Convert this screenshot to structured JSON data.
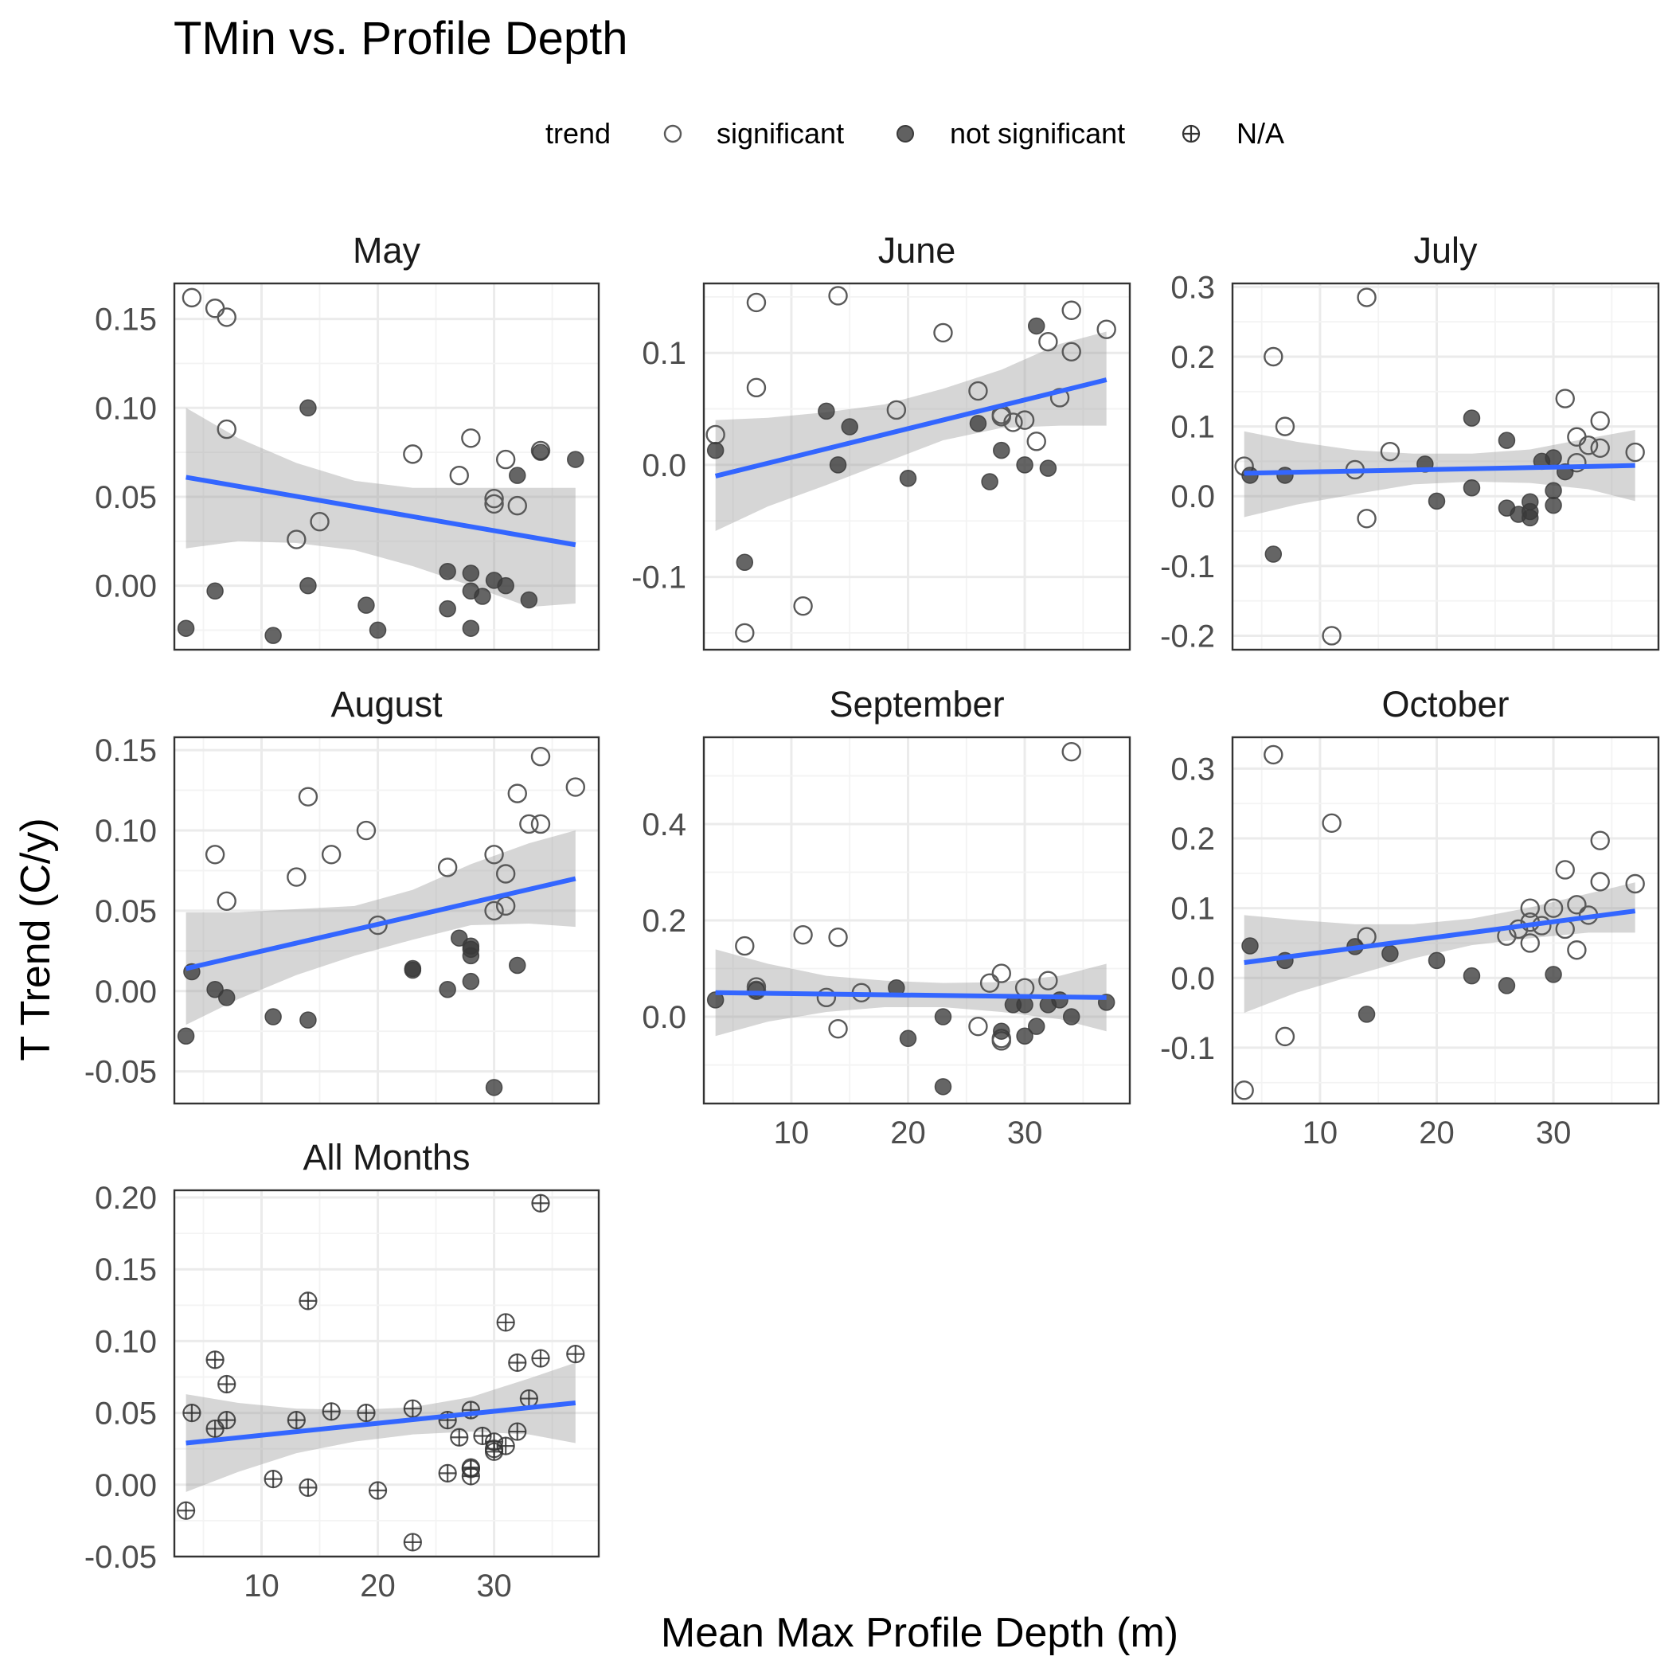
{
  "title": "TMin vs. Profile Depth",
  "legend": {
    "title": "trend",
    "items": [
      {
        "label": "significant",
        "shape": "open-circle"
      },
      {
        "label": "not significant",
        "shape": "filled-circle"
      },
      {
        "label": "N/A",
        "shape": "crossed-circle"
      }
    ]
  },
  "xlabel": "Mean Max Profile Depth (m)",
  "ylabel": "T Trend (C/y)",
  "colors": {
    "fit_line": "#3366FF",
    "ribbon": "#999999",
    "point_outline": "#595959",
    "point_fill": "#3a3a3a"
  },
  "chart_data": [
    {
      "type": "scatter",
      "panel": "May",
      "xlim": [
        2.5,
        39
      ],
      "ylim": [
        -0.036,
        0.17
      ],
      "x_ticks": [],
      "y_ticks": [
        "0.00",
        "0.05",
        "0.10",
        "0.15"
      ],
      "fit": {
        "x": [
          3.5,
          37
        ],
        "y": [
          0.061,
          0.023
        ]
      },
      "band": {
        "x": [
          3.5,
          8,
          13,
          18,
          23,
          28,
          33,
          37
        ],
        "upper": [
          0.1,
          0.083,
          0.069,
          0.059,
          0.055,
          0.055,
          0.055,
          0.055
        ],
        "lower": [
          0.021,
          0.025,
          0.024,
          0.02,
          0.011,
          0.0,
          -0.012,
          -0.01
        ]
      },
      "series": [
        {
          "name": "significant",
          "x": [
            4,
            6,
            7,
            7,
            13,
            15,
            23,
            27,
            28,
            30,
            30,
            31,
            32,
            34
          ],
          "y": [
            0.162,
            0.156,
            0.151,
            0.088,
            0.026,
            0.036,
            0.074,
            0.062,
            0.083,
            0.046,
            0.049,
            0.071,
            0.045,
            0.076
          ]
        },
        {
          "name": "not significant",
          "x": [
            3.5,
            6,
            11,
            14,
            14,
            19,
            20,
            26,
            26,
            28,
            28,
            28,
            29,
            30,
            31,
            32,
            33,
            34,
            37
          ],
          "y": [
            -0.024,
            -0.003,
            -0.028,
            0.1,
            0.0,
            -0.011,
            -0.025,
            0.008,
            -0.013,
            0.007,
            -0.003,
            -0.024,
            -0.006,
            0.003,
            0.0,
            0.062,
            -0.008,
            0.075,
            0.071
          ]
        }
      ]
    },
    {
      "type": "scatter",
      "panel": "June",
      "xlim": [
        2.5,
        39
      ],
      "ylim": [
        -0.165,
        0.162
      ],
      "x_ticks": [],
      "y_ticks": [
        "-0.1",
        "0.0",
        "0.1"
      ],
      "fit": {
        "x": [
          3.5,
          37
        ],
        "y": [
          -0.01,
          0.076
        ]
      },
      "band": {
        "x": [
          3.5,
          8,
          13,
          18,
          23,
          28,
          33,
          37
        ],
        "upper": [
          0.04,
          0.042,
          0.047,
          0.054,
          0.068,
          0.085,
          0.108,
          0.119
        ],
        "lower": [
          -0.059,
          -0.037,
          -0.018,
          0.002,
          0.022,
          0.033,
          0.035,
          0.035
        ]
      },
      "series": [
        {
          "name": "significant",
          "x": [
            3.5,
            6,
            7,
            7,
            11,
            14,
            19,
            23,
            26,
            28,
            28,
            29,
            30,
            31,
            32,
            33,
            34,
            34,
            37
          ],
          "y": [
            0.027,
            -0.15,
            0.145,
            0.069,
            -0.126,
            0.151,
            0.049,
            0.118,
            0.066,
            0.043,
            0.045,
            0.038,
            0.04,
            0.021,
            0.11,
            0.06,
            0.101,
            0.138,
            0.121
          ]
        },
        {
          "name": "not significant",
          "x": [
            3.5,
            6,
            13,
            15,
            14,
            20,
            26,
            27,
            28,
            30,
            31,
            32
          ],
          "y": [
            0.013,
            -0.087,
            0.048,
            0.034,
            0.0,
            -0.012,
            0.037,
            -0.015,
            0.013,
            0.0,
            0.124,
            -0.003
          ]
        }
      ]
    },
    {
      "type": "scatter",
      "panel": "July",
      "xlim": [
        2.5,
        39
      ],
      "ylim": [
        -0.22,
        0.305
      ],
      "x_ticks": [],
      "y_ticks": [
        "-0.2",
        "-0.1",
        "0.0",
        "0.1",
        "0.2",
        "0.3"
      ],
      "fit": {
        "x": [
          3.5,
          37
        ],
        "y": [
          0.033,
          0.044
        ]
      },
      "band": {
        "x": [
          3.5,
          8,
          13,
          18,
          23,
          28,
          33,
          37
        ],
        "upper": [
          0.093,
          0.078,
          0.066,
          0.061,
          0.061,
          0.067,
          0.083,
          0.095
        ],
        "lower": [
          -0.03,
          -0.012,
          0.003,
          0.017,
          0.021,
          0.019,
          0.01,
          -0.007
        ]
      },
      "series": [
        {
          "name": "significant",
          "x": [
            3.5,
            6,
            7,
            11,
            13,
            14,
            14,
            16,
            31,
            32,
            32,
            33,
            34,
            34,
            37
          ],
          "y": [
            0.043,
            0.2,
            0.1,
            -0.2,
            0.038,
            -0.032,
            0.285,
            0.064,
            0.14,
            0.085,
            0.048,
            0.073,
            0.069,
            0.108,
            0.063
          ]
        },
        {
          "name": "not significant",
          "x": [
            4,
            6,
            7,
            19,
            20,
            23,
            23,
            26,
            26,
            27,
            28,
            28,
            28,
            29,
            30,
            30,
            30,
            31
          ],
          "y": [
            0.03,
            -0.083,
            0.03,
            0.046,
            -0.007,
            0.112,
            0.012,
            0.08,
            -0.017,
            -0.026,
            -0.008,
            -0.022,
            -0.031,
            0.05,
            0.008,
            0.055,
            -0.013,
            0.035
          ]
        }
      ]
    },
    {
      "type": "scatter",
      "panel": "August",
      "xlim": [
        2.5,
        39
      ],
      "ylim": [
        -0.07,
        0.158
      ],
      "x_ticks": [],
      "y_ticks": [
        "-0.05",
        "0.00",
        "0.05",
        "0.10",
        "0.15"
      ],
      "fit": {
        "x": [
          3.5,
          37
        ],
        "y": [
          0.014,
          0.07
        ]
      },
      "band": {
        "x": [
          3.5,
          8,
          13,
          18,
          23,
          28,
          33,
          37
        ],
        "upper": [
          0.049,
          0.049,
          0.051,
          0.053,
          0.063,
          0.079,
          0.092,
          0.1
        ],
        "lower": [
          -0.021,
          -0.005,
          0.01,
          0.022,
          0.032,
          0.041,
          0.042,
          0.04
        ]
      },
      "series": [
        {
          "name": "significant",
          "x": [
            6,
            7,
            13,
            14,
            16,
            19,
            20,
            26,
            30,
            30,
            31,
            31,
            32,
            33,
            34,
            34,
            37
          ],
          "y": [
            0.085,
            0.056,
            0.071,
            0.121,
            0.085,
            0.1,
            0.041,
            0.077,
            0.085,
            0.05,
            0.053,
            0.073,
            0.123,
            0.104,
            0.104,
            0.146,
            0.127
          ]
        },
        {
          "name": "not significant",
          "x": [
            3.5,
            4,
            6,
            7,
            11,
            14,
            23,
            23,
            27,
            28,
            28,
            28,
            28,
            26,
            30,
            32
          ],
          "y": [
            -0.028,
            0.012,
            0.001,
            -0.004,
            -0.016,
            -0.018,
            0.014,
            0.013,
            0.033,
            0.028,
            0.026,
            0.022,
            0.006,
            0.001,
            -0.06,
            0.016
          ]
        }
      ]
    },
    {
      "type": "scatter",
      "panel": "September",
      "xlim": [
        2.5,
        39
      ],
      "ylim": [
        -0.18,
        0.58
      ],
      "x_ticks": [
        "10",
        "20",
        "30"
      ],
      "y_ticks": [
        "0.0",
        "0.2",
        "0.4"
      ],
      "fit": {
        "x": [
          3.5,
          37
        ],
        "y": [
          0.05,
          0.04
        ]
      },
      "band": {
        "x": [
          3.5,
          8,
          13,
          18,
          23,
          28,
          33,
          37
        ],
        "upper": [
          0.14,
          0.11,
          0.085,
          0.075,
          0.07,
          0.072,
          0.085,
          0.11
        ],
        "lower": [
          -0.04,
          -0.01,
          0.01,
          0.02,
          0.02,
          0.01,
          -0.005,
          -0.03
        ]
      },
      "series": [
        {
          "name": "significant",
          "x": [
            6,
            7,
            7,
            11,
            13,
            14,
            14,
            16,
            26,
            27,
            28,
            28,
            28,
            30,
            32,
            34
          ],
          "y": [
            0.147,
            0.062,
            0.055,
            0.17,
            0.04,
            0.165,
            -0.025,
            0.05,
            -0.02,
            0.07,
            0.09,
            -0.045,
            -0.05,
            0.06,
            0.075,
            0.55
          ]
        },
        {
          "name": "not significant",
          "x": [
            3.5,
            7,
            19,
            20,
            23,
            23,
            28,
            29,
            30,
            30,
            31,
            32,
            33,
            34,
            37
          ],
          "y": [
            0.035,
            0.055,
            0.06,
            -0.045,
            0.0,
            -0.145,
            -0.03,
            0.025,
            0.025,
            -0.04,
            -0.02,
            0.025,
            0.035,
            0.0,
            0.03
          ]
        }
      ]
    },
    {
      "type": "scatter",
      "panel": "October",
      "xlim": [
        2.5,
        39
      ],
      "ylim": [
        -0.18,
        0.345
      ],
      "x_ticks": [
        "10",
        "20",
        "30"
      ],
      "y_ticks": [
        "-0.1",
        "0.0",
        "0.1",
        "0.2",
        "0.3"
      ],
      "fit": {
        "x": [
          3.5,
          37
        ],
        "y": [
          0.022,
          0.096
        ]
      },
      "band": {
        "x": [
          3.5,
          8,
          13,
          18,
          23,
          28,
          33,
          37
        ],
        "upper": [
          0.09,
          0.083,
          0.077,
          0.077,
          0.085,
          0.101,
          0.121,
          0.137
        ],
        "lower": [
          -0.05,
          -0.021,
          0.004,
          0.028,
          0.047,
          0.057,
          0.065,
          0.065
        ]
      },
      "series": [
        {
          "name": "significant",
          "x": [
            3.5,
            6,
            7,
            11,
            14,
            26,
            27,
            28,
            28,
            28,
            29,
            30,
            31,
            31,
            32,
            32,
            33,
            34,
            34,
            37
          ],
          "y": [
            -0.161,
            0.32,
            -0.084,
            0.222,
            0.059,
            0.06,
            0.07,
            0.1,
            0.08,
            0.05,
            0.075,
            0.1,
            0.07,
            0.155,
            0.105,
            0.04,
            0.09,
            0.138,
            0.197,
            0.135
          ]
        },
        {
          "name": "not significant",
          "x": [
            4,
            7,
            13,
            14,
            16,
            20,
            23,
            26,
            30
          ],
          "y": [
            0.046,
            0.025,
            0.045,
            -0.052,
            0.035,
            0.025,
            0.003,
            -0.011,
            0.005
          ]
        }
      ]
    },
    {
      "type": "scatter",
      "panel": "All Months",
      "xlim": [
        2.5,
        39
      ],
      "ylim": [
        -0.05,
        0.205
      ],
      "x_ticks": [
        "10",
        "20",
        "30"
      ],
      "y_ticks": [
        "-0.05",
        "0.00",
        "0.05",
        "0.10",
        "0.15",
        "0.20"
      ],
      "fit": {
        "x": [
          3.5,
          37
        ],
        "y": [
          0.029,
          0.057
        ]
      },
      "band": {
        "x": [
          3.5,
          8,
          13,
          18,
          23,
          28,
          33,
          37
        ],
        "upper": [
          0.063,
          0.057,
          0.053,
          0.052,
          0.054,
          0.061,
          0.074,
          0.085
        ],
        "lower": [
          -0.005,
          0.009,
          0.022,
          0.03,
          0.035,
          0.037,
          0.035,
          0.029
        ]
      },
      "series": [
        {
          "name": "N/A",
          "x": [
            3.5,
            4,
            6,
            6,
            7,
            7,
            11,
            13,
            14,
            14,
            16,
            19,
            20,
            23,
            23,
            26,
            26,
            27,
            28,
            28,
            28,
            28,
            29,
            30,
            30,
            30,
            31,
            31,
            32,
            32,
            33,
            34,
            34,
            37
          ],
          "y": [
            -0.018,
            0.05,
            0.087,
            0.039,
            0.07,
            0.045,
            0.004,
            0.045,
            0.128,
            -0.002,
            0.051,
            0.05,
            -0.004,
            0.053,
            -0.04,
            0.045,
            0.008,
            0.033,
            0.052,
            0.012,
            0.011,
            0.006,
            0.034,
            0.03,
            0.025,
            0.023,
            0.027,
            0.113,
            0.037,
            0.085,
            0.06,
            0.088,
            0.196,
            0.091
          ]
        }
      ]
    }
  ]
}
